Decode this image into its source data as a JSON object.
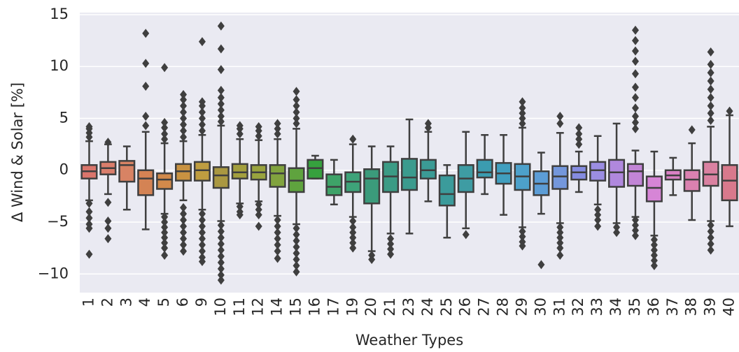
{
  "chart_data": {
    "type": "box",
    "xlabel": "Weather Types",
    "ylabel": "Δ Wind & Solar [%]",
    "ylim": [
      -11.8,
      15.2
    ],
    "yticks": [
      {
        "value": -10,
        "label": "−10"
      },
      {
        "value": -5,
        "label": "−5"
      },
      0,
      5,
      10,
      15
    ],
    "grid": true,
    "categories": [
      "1",
      "2",
      "3",
      "4",
      "5",
      "6",
      "9",
      "10",
      "11",
      "12",
      "14",
      "15",
      "16",
      "17",
      "19",
      "20",
      "21",
      "23",
      "24",
      "25",
      "26",
      "27",
      "28",
      "29",
      "30",
      "31",
      "32",
      "33",
      "34",
      "35",
      "36",
      "37",
      "38",
      "39",
      "40"
    ],
    "colors": [
      "hsl(5,60%,64%)",
      "hsl(10,60%,64%)",
      "hsl(16,60%,62%)",
      "hsl(22,60%,58%)",
      "hsl(28,60%,56%)",
      "hsl(36,55%,52%)",
      "hsl(44,50%,50%)",
      "hsl(50,45%,46%)",
      "hsl(58,45%,44%)",
      "hsl(66,45%,44%)",
      "hsl(80,45%,44%)",
      "hsl(100,45%,44%)",
      "hsl(125,50%,42%)",
      "hsl(145,45%,44%)",
      "hsl(155,45%,44%)",
      "hsl(160,45%,42%)",
      "hsl(166,45%,42%)",
      "hsl(172,45%,42%)",
      "hsl(176,45%,42%)",
      "hsl(180,45%,42%)",
      "hsl(184,45%,44%)",
      "hsl(190,50%,46%)",
      "hsl(195,50%,50%)",
      "hsl(200,55%,55%)",
      "hsl(208,60%,60%)",
      "hsl(220,60%,66%)",
      "hsl(235,60%,70%)",
      "hsl(250,60%,72%)",
      "hsl(268,55%,70%)",
      "hsl(285,50%,68%)",
      "hsl(300,50%,68%)",
      "hsl(315,55%,68%)",
      "hsl(328,55%,68%)",
      "hsl(338,55%,68%)",
      "hsl(348,55%,66%)"
    ],
    "boxes": [
      {
        "whislo": -2.9,
        "q1": -0.8,
        "med": -0.1,
        "q3": 0.5,
        "whishi": 2.8,
        "fliers": [
          3.2,
          3.6,
          4.0,
          4.2,
          -3.2,
          -4,
          -4.6,
          -5.2,
          -5.6,
          -8.1
        ]
      },
      {
        "whislo": -2.3,
        "q1": -0.4,
        "med": 0.2,
        "q3": 0.8,
        "whishi": 2.5,
        "fliers": [
          2.7,
          -3.1,
          -4.9,
          -5.6,
          -6.6
        ]
      },
      {
        "whislo": -3.8,
        "q1": -1.1,
        "med": 0.5,
        "q3": 0.9,
        "whishi": 2.3,
        "fliers": []
      },
      {
        "whislo": -5.7,
        "q1": -2.4,
        "med": -0.8,
        "q3": 0,
        "whishi": 3.7,
        "fliers": [
          4.3,
          5.2,
          8.1,
          10.3,
          13.2
        ]
      },
      {
        "whislo": -4.2,
        "q1": -1.8,
        "med": -0.9,
        "q3": -0.3,
        "whishi": 2.6,
        "fliers": [
          3.0,
          3.5,
          4.1,
          4.6,
          9.9,
          -4.5,
          -5,
          -5.5,
          -6,
          -6.5,
          -7,
          -7.5,
          -8.2
        ]
      },
      {
        "whislo": -2.9,
        "q1": -1.0,
        "med": -0.1,
        "q3": 0.6,
        "whishi": 2.8,
        "fliers": [
          3.2,
          3.8,
          4.4,
          5,
          5.6,
          6.2,
          6.8,
          7.3,
          -3.6,
          -4.2,
          -4.8,
          -5.4,
          -6,
          -6.6,
          -7.2,
          -7.8
        ]
      },
      {
        "whislo": -3.8,
        "q1": -1.0,
        "med": 0,
        "q3": 0.8,
        "whishi": 3.4,
        "fliers": [
          3.8,
          4.4,
          5,
          5.6,
          6.2,
          6.6,
          12.4,
          -4.2,
          -4.8,
          -5.4,
          -6,
          -6.6,
          -7.2,
          -7.8,
          -8.4,
          -8.8
        ]
      },
      {
        "whislo": -4.9,
        "q1": -1.7,
        "med": -0.5,
        "q3": 0.3,
        "whishi": 4.3,
        "fliers": [
          4.7,
          5.2,
          5.8,
          6.4,
          7,
          7.7,
          9.7,
          11.7,
          13.9,
          -5.3,
          -5.9,
          -6.5,
          -7.1,
          -7.7,
          -8.3,
          -8.9,
          -9.5,
          -10.1,
          -10.6
        ]
      },
      {
        "whislo": -3.2,
        "q1": -0.8,
        "med": -0.2,
        "q3": 0.6,
        "whishi": 3.0,
        "fliers": [
          3.5,
          4,
          4.3,
          -3.5,
          -4,
          -4.3
        ]
      },
      {
        "whislo": -3.0,
        "q1": -0.9,
        "med": -0.2,
        "q3": 0.5,
        "whishi": 2.9,
        "fliers": [
          3.3,
          3.8,
          4.2,
          -3.3,
          -3.8,
          -4.3,
          -5.4
        ]
      },
      {
        "whislo": -4.4,
        "q1": -1.6,
        "med": -0.3,
        "q3": 0.5,
        "whishi": 3.0,
        "fliers": [
          3.5,
          4,
          4.5,
          -4.8,
          -5.4,
          -6,
          -6.6,
          -7.2,
          -7.8,
          -8.5
        ]
      },
      {
        "whislo": -5.2,
        "q1": -2.1,
        "med": -1.0,
        "q3": 0.2,
        "whishi": 4.0,
        "fliers": [
          4.5,
          5,
          5.6,
          6.2,
          6.8,
          7.6,
          -5.6,
          -6.2,
          -6.8,
          -7.4,
          -8,
          -8.6,
          -9.2,
          -9.8
        ]
      },
      {
        "whislo": -0.8,
        "q1": -0.8,
        "med": 0.2,
        "q3": 1.0,
        "whishi": 1.4,
        "fliers": []
      },
      {
        "whislo": -3.3,
        "q1": -2.4,
        "med": -1.6,
        "q3": -0.4,
        "whishi": 1.0,
        "fliers": []
      },
      {
        "whislo": -4.5,
        "q1": -2.1,
        "med": -1.1,
        "q3": -0.2,
        "whishi": 2.5,
        "fliers": [
          3,
          -4.9,
          -5.5,
          -6,
          -6.5,
          -7,
          -7.5
        ]
      },
      {
        "whislo": -7.8,
        "q1": -3.2,
        "med": -0.8,
        "q3": 0.1,
        "whishi": 2.3,
        "fliers": [
          -8.2,
          -8.6
        ]
      },
      {
        "whislo": -6.1,
        "q1": -2.1,
        "med": -0.6,
        "q3": 0.8,
        "whishi": 2.3,
        "fliers": [
          -6.6,
          -7.1,
          -7.6,
          -8.1
        ]
      },
      {
        "whislo": -6.1,
        "q1": -1.9,
        "med": -0.7,
        "q3": 1.1,
        "whishi": 4.9,
        "fliers": []
      },
      {
        "whislo": -3.0,
        "q1": -0.8,
        "med": 0.0,
        "q3": 1.0,
        "whishi": 3.7,
        "fliers": [
          4.1,
          4.5
        ]
      },
      {
        "whislo": -6.5,
        "q1": -3.4,
        "med": -2.3,
        "q3": -0.5,
        "whishi": 0.5,
        "fliers": []
      },
      {
        "whislo": -5.6,
        "q1": -2.1,
        "med": -0.8,
        "q3": 0.5,
        "whishi": 3.7,
        "fliers": [
          -6.2
        ]
      },
      {
        "whislo": -2.3,
        "q1": -0.7,
        "med": -0.2,
        "q3": 1.0,
        "whishi": 3.4,
        "fliers": []
      },
      {
        "whislo": -4.3,
        "q1": -1.3,
        "med": -0.3,
        "q3": 0.7,
        "whishi": 3.4,
        "fliers": []
      },
      {
        "whislo": -5.5,
        "q1": -1.9,
        "med": -0.6,
        "q3": 0.6,
        "whishi": 4.1,
        "fliers": [
          4.5,
          5,
          5.5,
          6,
          6.6,
          -5.9,
          -6.4,
          -6.9,
          -7.3
        ]
      },
      {
        "whislo": -4.2,
        "q1": -2.4,
        "med": -1.3,
        "q3": -0.1,
        "whishi": 1.7,
        "fliers": [
          -9.1
        ]
      },
      {
        "whislo": -5.1,
        "q1": -1.8,
        "med": -0.6,
        "q3": 0.4,
        "whishi": 3.6,
        "fliers": [
          4.5,
          5.2,
          -5.5,
          -6,
          -6.5,
          -7,
          -7.5,
          -8.2
        ]
      },
      {
        "whislo": -2.1,
        "q1": -0.9,
        "med": -0.2,
        "q3": 0.4,
        "whishi": 1.8,
        "fliers": [
          2.5,
          3,
          3.5,
          4.1
        ]
      },
      {
        "whislo": -3.3,
        "q1": -1.0,
        "med": 0.0,
        "q3": 0.8,
        "whishi": 3.3,
        "fliers": [
          -3.8,
          -4.3,
          -4.8,
          -5.4
        ]
      },
      {
        "whislo": -5.1,
        "q1": -1.6,
        "med": -0.2,
        "q3": 1.0,
        "whishi": 4.5,
        "fliers": [
          -5.5,
          -6
        ]
      },
      {
        "whislo": -4.5,
        "q1": -1.5,
        "med": -0.1,
        "q3": 0.6,
        "whishi": 1.9,
        "fliers": [
          4,
          4.6,
          5.2,
          6,
          7,
          8,
          9.3,
          10.5,
          11.5,
          12.5,
          13.5,
          -4.8,
          -5.3,
          -5.8,
          -6.3
        ]
      },
      {
        "whislo": -6.3,
        "q1": -3.0,
        "med": -1.7,
        "q3": -0.6,
        "whishi": 1.8,
        "fliers": [
          -6.7,
          -7.2,
          -7.7,
          -8.2,
          -8.7,
          -9.2
        ]
      },
      {
        "whislo": -2.4,
        "q1": -0.9,
        "med": -0.5,
        "q3": 0.0,
        "whishi": 1.2,
        "fliers": []
      },
      {
        "whislo": -4.8,
        "q1": -2.0,
        "med": -0.9,
        "q3": 0.0,
        "whishi": 2.6,
        "fliers": [
          3.9
        ]
      },
      {
        "whislo": -4.9,
        "q1": -1.5,
        "med": -0.4,
        "q3": 0.8,
        "whishi": 4.2,
        "fliers": [
          4.8,
          5.5,
          6.2,
          7,
          7.8,
          8.6,
          9.4,
          10.2,
          11.4,
          -5.3,
          -5.9,
          -6.5,
          -7.1,
          -7.7
        ]
      },
      {
        "whislo": -5.4,
        "q1": -2.9,
        "med": -1.0,
        "q3": 0.5,
        "whishi": 5.3,
        "fliers": [
          5.7
        ]
      }
    ]
  }
}
